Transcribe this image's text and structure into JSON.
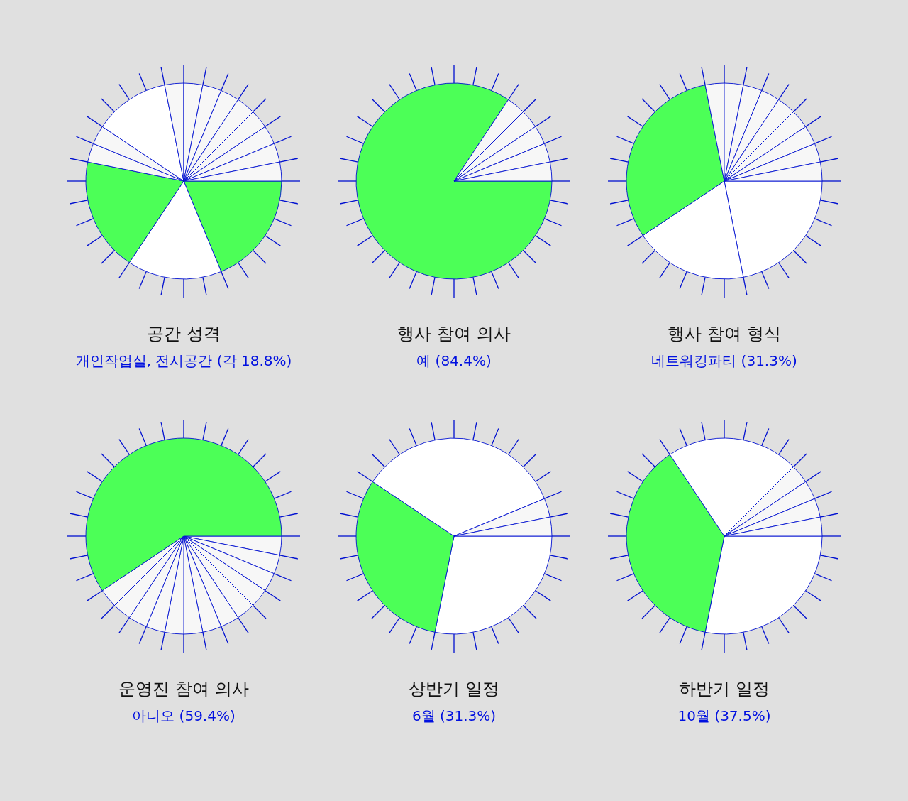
{
  "chart_data": [
    {
      "type": "pie",
      "title": "공간 성격",
      "subtitle": "개인작업실, 전시공간 (각 18.8%)",
      "categories": [
        null,
        null,
        null,
        null,
        null,
        null,
        null,
        null,
        null,
        null,
        null,
        null,
        null,
        null,
        null
      ],
      "values": [
        18.75,
        15.625,
        18.75,
        3.125,
        3.125,
        12.5,
        3.125,
        3.125,
        3.125,
        3.125,
        3.125,
        3.125,
        3.125,
        3.125,
        3.125
      ],
      "colors": [
        "#4cff57",
        "#ffffff",
        "#4cff57",
        "#f7f7f7",
        "#f7f7f7",
        "#ffffff",
        "#f7f7f7",
        "#f7f7f7",
        "#f7f7f7",
        "#f7f7f7",
        "#f7f7f7",
        "#f7f7f7",
        "#f7f7f7",
        "#f7f7f7",
        "#f7f7f7"
      ]
    },
    {
      "type": "pie",
      "title": "행사 참여 의사",
      "subtitle": "예 (84.4%)",
      "categories": [
        null,
        null,
        null,
        null,
        null,
        null
      ],
      "values": [
        84.375,
        3.125,
        3.125,
        3.125,
        3.125,
        3.125
      ],
      "colors": [
        "#4cff57",
        "#f7f7f7",
        "#f7f7f7",
        "#f7f7f7",
        "#f7f7f7",
        "#f7f7f7"
      ]
    },
    {
      "type": "pie",
      "title": "행사 참여 형식",
      "subtitle": "네트워킹파티 (31.3%)",
      "categories": [
        null,
        null,
        null,
        null,
        null,
        null,
        null,
        null,
        null,
        null,
        null,
        null
      ],
      "values": [
        21.875,
        18.75,
        31.25,
        3.125,
        3.125,
        3.125,
        3.125,
        3.125,
        3.125,
        3.125,
        3.125,
        3.125
      ],
      "colors": [
        "#ffffff",
        "#ffffff",
        "#4cff57",
        "#f7f7f7",
        "#f7f7f7",
        "#f7f7f7",
        "#f7f7f7",
        "#f7f7f7",
        "#f7f7f7",
        "#f7f7f7",
        "#f7f7f7",
        "#f7f7f7"
      ]
    },
    {
      "type": "pie",
      "title": "운영진 참여 의사",
      "subtitle": "아니오 (59.4%)",
      "categories": [
        null,
        null,
        null,
        null,
        null,
        null,
        null,
        null,
        null,
        null,
        null,
        null,
        null,
        null
      ],
      "values": [
        3.125,
        3.125,
        3.125,
        3.125,
        3.125,
        3.125,
        3.125,
        3.125,
        3.125,
        3.125,
        3.125,
        3.125,
        3.125,
        59.375
      ],
      "colors": [
        "#f7f7f7",
        "#f7f7f7",
        "#f7f7f7",
        "#f7f7f7",
        "#f7f7f7",
        "#f7f7f7",
        "#f7f7f7",
        "#f7f7f7",
        "#f7f7f7",
        "#f7f7f7",
        "#f7f7f7",
        "#f7f7f7",
        "#f7f7f7",
        "#4cff57"
      ]
    },
    {
      "type": "pie",
      "title": "상반기 일정",
      "subtitle": "6월 (31.3%)",
      "categories": [
        null,
        null,
        null,
        null,
        null
      ],
      "values": [
        28.125,
        31.25,
        34.375,
        3.125,
        3.125
      ],
      "colors": [
        "#ffffff",
        "#4cff57",
        "#ffffff",
        "#f7f7f7",
        "#f7f7f7"
      ]
    },
    {
      "type": "pie",
      "title": "하반기 일정",
      "subtitle": "10월 (37.5%)",
      "categories": [
        null,
        null,
        null,
        null,
        null,
        null,
        null
      ],
      "values": [
        28.125,
        37.5,
        21.875,
        3.125,
        3.125,
        3.125,
        3.125
      ],
      "colors": [
        "#ffffff",
        "#4cff57",
        "#ffffff",
        "#f7f7f7",
        "#f7f7f7",
        "#f7f7f7",
        "#f7f7f7"
      ]
    }
  ]
}
